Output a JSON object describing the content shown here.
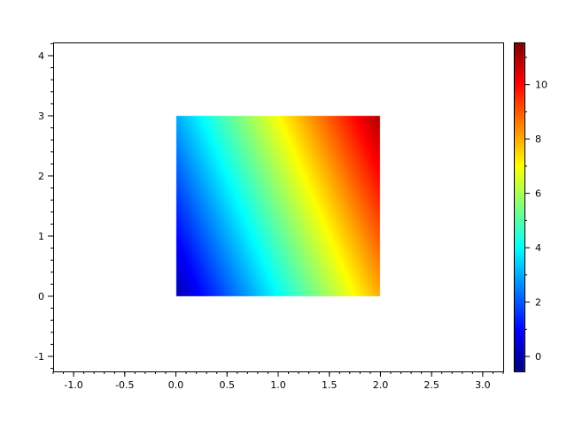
{
  "chart_data": {
    "type": "heatmap",
    "title": "",
    "xlabel": "",
    "ylabel": "",
    "xlim": [
      -1.2,
      3.2
    ],
    "ylim": [
      -1.25,
      4.22
    ],
    "x_ticks": [
      "-1.0",
      "-0.5",
      "0.0",
      "0.5",
      "1.0",
      "1.5",
      "2.0",
      "2.5",
      "3.0"
    ],
    "x_tick_values": [
      -1,
      -0.5,
      0,
      0.5,
      1,
      1.5,
      2,
      2.5,
      3
    ],
    "y_ticks": [
      "-1",
      "0",
      "1",
      "2",
      "3",
      "4"
    ],
    "y_tick_values": [
      -1,
      0,
      1,
      2,
      3,
      4
    ],
    "data_extent": {
      "x": [
        0,
        2
      ],
      "y": [
        0,
        3
      ]
    },
    "function": "z = 4x + y",
    "colormap": "jet",
    "grid": false,
    "colorbar": {
      "range": [
        -0.55,
        11.55
      ],
      "ticks": [
        "0",
        "2",
        "4",
        "6",
        "8",
        "10"
      ],
      "tick_values": [
        0,
        2,
        4,
        6,
        8,
        10
      ],
      "placement": "right"
    }
  }
}
